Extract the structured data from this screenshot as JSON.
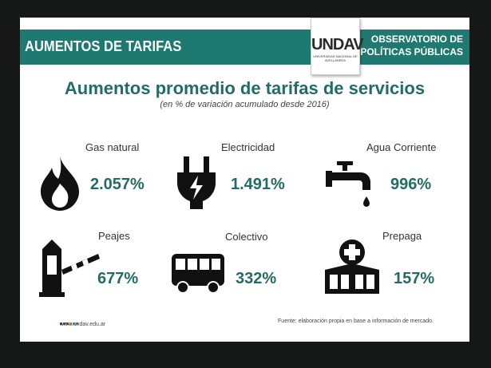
{
  "header": {
    "title": "AUMENTOS DE TARIFAS",
    "org_line1": "OBSERVATORIO DE",
    "org_line2": "POLÍTICAS PÚBLICAS",
    "logo_text": "UNDAV",
    "logo_sub": "UNIVERSIDAD NACIONAL DE AVELLANEDA"
  },
  "main": {
    "title": "Aumentos promedio de tarifas de servicios",
    "subtitle": "(en % de variación acumulado desde 2016)"
  },
  "items": [
    {
      "label": "Gas natural",
      "value": "2.057%",
      "icon": "flame-icon"
    },
    {
      "label": "Electricidad",
      "value": "1.491%",
      "icon": "plug-icon"
    },
    {
      "label": "Agua Corriente",
      "value": "996%",
      "icon": "faucet-icon"
    },
    {
      "label": "Peajes",
      "value": "677%",
      "icon": "toll-barrier-icon"
    },
    {
      "label": "Colectivo",
      "value": "332%",
      "icon": "bus-icon"
    },
    {
      "label": "Prepaga",
      "value": "157%",
      "icon": "medical-building-icon"
    }
  ],
  "footer": {
    "url": "www.undav.edu.ar",
    "source": "Fuente: elaboración propia en base a información de mercado."
  },
  "colors": {
    "band": "#1e7a70",
    "value": "#236b63",
    "dots": [
      "#7a2a4a",
      "#555",
      "#c33",
      "#e8b020",
      "#4a9",
      "#39c"
    ]
  }
}
